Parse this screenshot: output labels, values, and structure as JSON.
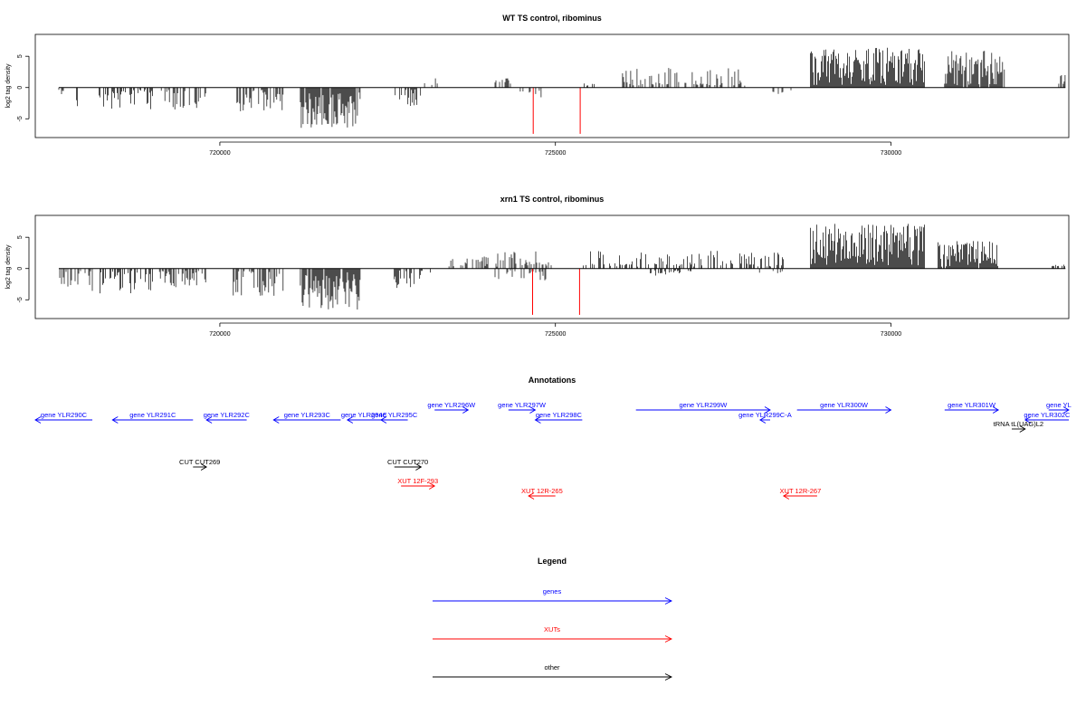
{
  "chart_data": [
    {
      "type": "bar",
      "title": "WT TS control, ribominus",
      "xlabel": "",
      "ylabel": "log2 tag density",
      "xlim": [
        717250,
        732650
      ],
      "ylim": [
        -8,
        8.5
      ],
      "x_ticks": [
        720000,
        725000,
        730000
      ],
      "y_ticks": [
        -5,
        0,
        5
      ],
      "x_tick_labels": [
        "720000",
        "725000",
        "730000"
      ],
      "y_tick_labels": [
        "-5",
        "0",
        "5"
      ],
      "baseline": {
        "from": 717600,
        "to": 732600
      },
      "highlight_color": "#ff0000",
      "regions": [
        {
          "from": 717600,
          "to": 717700,
          "mean": -0.6,
          "amp": 0.5,
          "density": 0.2
        },
        {
          "from": 717850,
          "to": 717950,
          "mean": -1.8,
          "amp": 1.2,
          "density": 0.5
        },
        {
          "from": 718200,
          "to": 719000,
          "mean": -1.8,
          "amp": 1.6,
          "density": 0.5
        },
        {
          "from": 719100,
          "to": 719800,
          "mean": -1.6,
          "amp": 1.6,
          "density": 0.5
        },
        {
          "from": 720200,
          "to": 720950,
          "mean": -2.0,
          "amp": 1.6,
          "density": 0.6
        },
        {
          "from": 721200,
          "to": 722100,
          "mean": -3.6,
          "amp": 2.4,
          "density": 0.95
        },
        {
          "from": 722600,
          "to": 723000,
          "mean": -1.6,
          "amp": 1.2,
          "density": 0.5
        },
        {
          "from": 723050,
          "to": 723250,
          "mean": 0.6,
          "amp": 0.8,
          "density": 0.25
        },
        {
          "from": 724100,
          "to": 724350,
          "mean": 0.8,
          "amp": 0.8,
          "density": 0.3
        },
        {
          "from": 724450,
          "to": 724800,
          "mean": -0.6,
          "amp": 1.0,
          "density": 0.3
        },
        {
          "from": 725400,
          "to": 725600,
          "mean": 0.5,
          "amp": 0.6,
          "density": 0.25
        },
        {
          "from": 726000,
          "to": 728000,
          "mean": 1.4,
          "amp": 1.5,
          "density": 0.35
        },
        {
          "from": 728200,
          "to": 728600,
          "mean": -0.7,
          "amp": 0.6,
          "density": 0.2
        },
        {
          "from": 728800,
          "to": 730500,
          "mean": 3.4,
          "amp": 2.5,
          "density": 1.0
        },
        {
          "from": 730800,
          "to": 731700,
          "mean": 3.0,
          "amp": 2.4,
          "density": 0.95
        },
        {
          "from": 732500,
          "to": 732600,
          "mean": 1.6,
          "amp": 1.0,
          "density": 0.6
        }
      ],
      "highlights": [
        {
          "x": 724670,
          "y": -7.4
        },
        {
          "x": 725370,
          "y": -7.4
        }
      ]
    },
    {
      "type": "bar",
      "title": "xrn1 TS control, ribominus",
      "xlabel": "",
      "ylabel": "log2 tag density",
      "xlim": [
        717250,
        732650
      ],
      "ylim": [
        -8,
        8.5
      ],
      "x_ticks": [
        720000,
        725000,
        730000
      ],
      "y_ticks": [
        -5,
        0,
        5
      ],
      "x_tick_labels": [
        "720000",
        "725000",
        "730000"
      ],
      "y_tick_labels": [
        "-5",
        "0",
        "5"
      ],
      "baseline": {
        "from": 717600,
        "to": 732600
      },
      "highlight_color": "#ff0000",
      "regions": [
        {
          "from": 717600,
          "to": 718100,
          "mean": -1.8,
          "amp": 1.8,
          "density": 0.6
        },
        {
          "from": 718200,
          "to": 719000,
          "mean": -2.0,
          "amp": 1.8,
          "density": 0.6
        },
        {
          "from": 719100,
          "to": 719800,
          "mean": -1.6,
          "amp": 1.6,
          "density": 0.6
        },
        {
          "from": 720200,
          "to": 720950,
          "mean": -2.2,
          "amp": 1.8,
          "density": 0.65
        },
        {
          "from": 721200,
          "to": 722100,
          "mean": -3.6,
          "amp": 2.5,
          "density": 0.95
        },
        {
          "from": 722600,
          "to": 723000,
          "mean": -1.8,
          "amp": 1.4,
          "density": 0.6
        },
        {
          "from": 723000,
          "to": 723200,
          "mean": -0.3,
          "amp": 0.3,
          "density": 0.2
        },
        {
          "from": 723400,
          "to": 724100,
          "mean": 0.8,
          "amp": 1.0,
          "density": 0.35
        },
        {
          "from": 724100,
          "to": 725000,
          "mean": 1.2,
          "amp": 1.4,
          "density": 0.45
        },
        {
          "from": 724100,
          "to": 724900,
          "mean": -1.0,
          "amp": 0.8,
          "density": 0.35
        },
        {
          "from": 725400,
          "to": 728400,
          "mean": 1.2,
          "amp": 1.4,
          "density": 0.45
        },
        {
          "from": 726400,
          "to": 727200,
          "mean": -0.6,
          "amp": 0.5,
          "density": 0.25
        },
        {
          "from": 728000,
          "to": 728400,
          "mean": -0.5,
          "amp": 0.4,
          "density": 0.2
        },
        {
          "from": 728800,
          "to": 730500,
          "mean": 3.8,
          "amp": 2.8,
          "density": 1.0
        },
        {
          "from": 730700,
          "to": 731600,
          "mean": 2.4,
          "amp": 1.8,
          "density": 0.95
        },
        {
          "from": 732400,
          "to": 732600,
          "mean": 0.3,
          "amp": 0.3,
          "density": 0.6
        }
      ],
      "highlights": [
        {
          "x": 724660,
          "y": -7.4
        },
        {
          "x": 725360,
          "y": -7.4
        }
      ]
    },
    {
      "type": "table",
      "title": "Annotations",
      "xlim": [
        717250,
        732650
      ],
      "features": [
        {
          "label": "gene YLR290C",
          "kind": "gene",
          "strand": "-",
          "from": 717250,
          "to": 718100,
          "row": 2
        },
        {
          "label": "gene YLR291C",
          "kind": "gene",
          "strand": "-",
          "from": 718400,
          "to": 719600,
          "row": 2
        },
        {
          "label": "gene YLR292C",
          "kind": "gene",
          "strand": "-",
          "from": 719800,
          "to": 720400,
          "row": 2
        },
        {
          "label": "gene YLR293C",
          "kind": "gene",
          "strand": "-",
          "from": 720800,
          "to": 721800,
          "row": 2
        },
        {
          "label": "gene YLR294C",
          "kind": "gene",
          "strand": "-",
          "from": 721900,
          "to": 722400,
          "row": 2
        },
        {
          "label": "gene YLR295C",
          "kind": "gene",
          "strand": "-",
          "from": 722400,
          "to": 722800,
          "row": 2
        },
        {
          "label": "gene YLR296W",
          "kind": "gene",
          "strand": "+",
          "from": 723200,
          "to": 723700,
          "row": 1
        },
        {
          "label": "gene YLR297W",
          "kind": "gene",
          "strand": "+",
          "from": 724300,
          "to": 724700,
          "row": 1
        },
        {
          "label": "gene YLR298C",
          "kind": "gene",
          "strand": "-",
          "from": 724700,
          "to": 725400,
          "row": 2
        },
        {
          "label": "gene YLR299W",
          "kind": "gene",
          "strand": "+",
          "from": 726200,
          "to": 728200,
          "row": 1
        },
        {
          "label": "gene YLR299C-A",
          "kind": "gene",
          "strand": "-",
          "from": 728050,
          "to": 728200,
          "row": 2
        },
        {
          "label": "gene YLR300W",
          "kind": "gene",
          "strand": "+",
          "from": 728600,
          "to": 730000,
          "row": 1
        },
        {
          "label": "gene YLR301W",
          "kind": "gene",
          "strand": "+",
          "from": 730800,
          "to": 731600,
          "row": 1
        },
        {
          "label": "gene YLR302C",
          "kind": "gene",
          "strand": "-",
          "from": 732000,
          "to": 732650,
          "row": 2
        },
        {
          "label": "gene YL",
          "kind": "gene",
          "strand": "+",
          "from": 732350,
          "to": 732650,
          "row": 1
        },
        {
          "label": "tRNA tL(UAG)L2",
          "kind": "other",
          "strand": "+",
          "from": 731800,
          "to": 732000,
          "row": 3
        },
        {
          "label": "CUT CUT269",
          "kind": "other",
          "strand": "+",
          "from": 719600,
          "to": 719800,
          "row": 5
        },
        {
          "label": "CUT CUT270",
          "kind": "other",
          "strand": "+",
          "from": 722600,
          "to": 723000,
          "row": 5
        },
        {
          "label": "XUT 12F-293",
          "kind": "xut",
          "strand": "+",
          "from": 722700,
          "to": 723200,
          "row": 6
        },
        {
          "label": "XUT 12R-265",
          "kind": "xut",
          "strand": "-",
          "from": 724600,
          "to": 725000,
          "row": 7
        },
        {
          "label": "XUT 12R-267",
          "kind": "xut",
          "strand": "-",
          "from": 728400,
          "to": 728900,
          "row": 7
        }
      ]
    },
    {
      "type": "table",
      "title": "Legend",
      "entries": [
        {
          "label": "genes",
          "color": "#0000ff"
        },
        {
          "label": "XUTs",
          "color": "#ff0000"
        },
        {
          "label": "other",
          "color": "#000000"
        }
      ]
    }
  ]
}
